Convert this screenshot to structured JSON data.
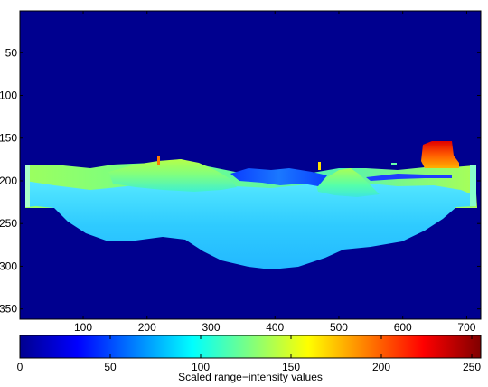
{
  "chart_data": [
    {
      "type": "heatmap",
      "title": "",
      "xlabel": "",
      "ylabel": "",
      "x_ticks": [
        "100",
        "200",
        "300",
        "400",
        "500",
        "600",
        "700"
      ],
      "x_tick_values": [
        100,
        200,
        300,
        400,
        500,
        600,
        700
      ],
      "y_ticks": [
        "50",
        "100",
        "150",
        "200",
        "250",
        "300",
        "350"
      ],
      "y_tick_values": [
        50,
        100,
        150,
        200,
        250,
        300,
        350
      ],
      "xlim": [
        1,
        722
      ],
      "ylim": [
        362,
        1
      ],
      "y_direction": "reversed",
      "colormap": "jet",
      "background_value": 0,
      "regions": [
        {
          "name": "ground surface (terrain)",
          "approx_value": 105,
          "color": "#33ccff"
        },
        {
          "name": "left mound",
          "approx_value": 140,
          "color": "#99ff66"
        },
        {
          "name": "right mound",
          "approx_value": 130,
          "color": "#66ff99"
        },
        {
          "name": "upper-right object",
          "approx_value": 210,
          "color": "#ff3300"
        },
        {
          "name": "far background strip",
          "approx_value": 60,
          "color": "#0088ff"
        }
      ]
    },
    {
      "type": "colorbar",
      "xlabel": "Scaled range−intensity values",
      "x_ticks": [
        "0",
        "50",
        "100",
        "150",
        "200",
        "250"
      ],
      "x_tick_values": [
        0,
        50,
        100,
        150,
        200,
        250
      ],
      "range": [
        0,
        255
      ],
      "colormap": "jet"
    }
  ]
}
